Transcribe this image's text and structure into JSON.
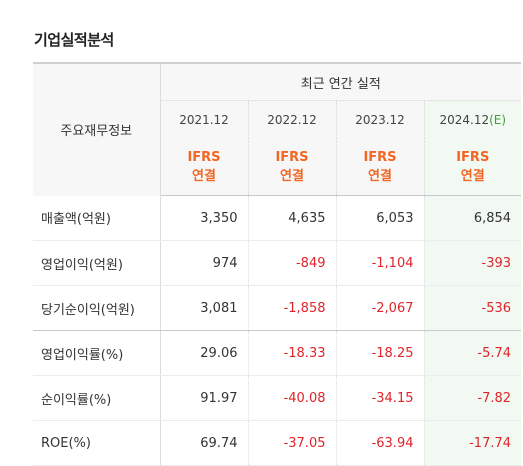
{
  "section_title": "기업실적분석",
  "table": {
    "label_header": "주요재무정보",
    "group_header": "최근 연간 실적",
    "years": [
      {
        "label": "2021.12",
        "suffix": ""
      },
      {
        "label": "2022.12",
        "suffix": ""
      },
      {
        "label": "2023.12",
        "suffix": ""
      },
      {
        "label": "2024.12",
        "suffix": "(E)"
      }
    ],
    "standards": [
      {
        "line1": "IFRS",
        "line2": "연결"
      },
      {
        "line1": "IFRS",
        "line2": "연결"
      },
      {
        "line1": "IFRS",
        "line2": "연결"
      },
      {
        "line1": "IFRS",
        "line2": "연결"
      }
    ],
    "rows": [
      {
        "label": "매출액(억원)",
        "values": [
          "3,350",
          "4,635",
          "6,053",
          "6,854"
        ]
      },
      {
        "label": "영업이익(억원)",
        "values": [
          "974",
          "-849",
          "-1,104",
          "-393"
        ]
      },
      {
        "label": "당기순이익(억원)",
        "values": [
          "3,081",
          "-1,858",
          "-2,067",
          "-536"
        ]
      },
      {
        "label": "영업이익률(%)",
        "values": [
          "29.06",
          "-18.33",
          "-18.25",
          "-5.74"
        ]
      },
      {
        "label": "순이익률(%)",
        "values": [
          "91.97",
          "-40.08",
          "-34.15",
          "-7.82"
        ]
      },
      {
        "label": "ROE(%)",
        "values": [
          "69.74",
          "-37.05",
          "-63.94",
          "-17.74"
        ]
      }
    ]
  },
  "colors": {
    "negative": "#e0242a",
    "ifrs": "#f26522",
    "estimate": "#3f9f3f",
    "estimate_bg": "#f2f9f2"
  }
}
